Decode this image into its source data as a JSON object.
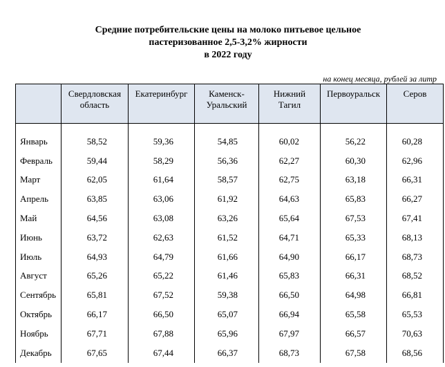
{
  "title": [
    "Средние потребительские цены на молоко питьевое цельное",
    "пастеризованное 2,5-3,2% жирности",
    "в 2022 году"
  ],
  "note": "на конец месяца, рублей за литр",
  "table": {
    "headers": [
      [
        "Свердловская",
        "область"
      ],
      [
        "Екатеринбург"
      ],
      [
        "Каменск-",
        "Уральский"
      ],
      [
        "Нижний",
        "Тагил"
      ],
      [
        "Первоуральск"
      ],
      [
        "Серов"
      ]
    ],
    "rows": [
      [
        "Январь",
        "58,52",
        "59,36",
        "54,85",
        "60,02",
        "56,22",
        "60,28"
      ],
      [
        "Февраль",
        "59,44",
        "58,29",
        "56,36",
        "62,27",
        "60,30",
        "62,96"
      ],
      [
        "Март",
        "62,05",
        "61,64",
        "58,57",
        "62,75",
        "63,18",
        "66,31"
      ],
      [
        "Апрель",
        "63,85",
        "63,06",
        "61,92",
        "64,63",
        "65,83",
        "66,27"
      ],
      [
        "Май",
        "64,56",
        "63,08",
        "63,26",
        "65,64",
        "67,53",
        "67,41"
      ],
      [
        "Июнь",
        "63,72",
        "62,63",
        "61,52",
        "64,71",
        "65,33",
        "68,13"
      ],
      [
        "Июль",
        "64,93",
        "64,79",
        "61,66",
        "64,90",
        "66,17",
        "68,73"
      ],
      [
        "Август",
        "65,26",
        "65,22",
        "61,46",
        "65,83",
        "66,31",
        "68,52"
      ],
      [
        "Сентябрь",
        "65,81",
        "67,52",
        "59,38",
        "66,50",
        "64,98",
        "66,81"
      ],
      [
        "Октябрь",
        "66,17",
        "66,50",
        "65,07",
        "66,94",
        "65,58",
        "65,53"
      ],
      [
        "Ноябрь",
        "67,71",
        "67,88",
        "65,96",
        "67,97",
        "66,57",
        "70,63"
      ],
      [
        "Декабрь",
        "67,65",
        "67,44",
        "66,37",
        "68,73",
        "67,58",
        "68,56"
      ]
    ]
  }
}
